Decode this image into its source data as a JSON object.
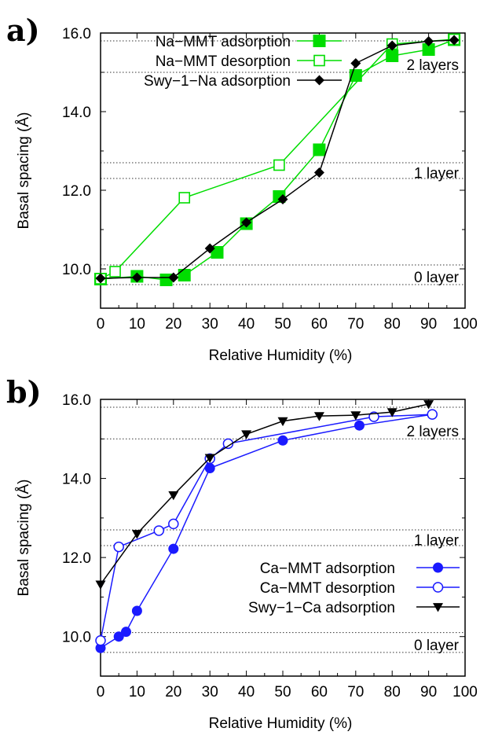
{
  "chart_data": [
    {
      "type": "line",
      "panel_label": "a)",
      "xlabel": "Relative Humidity (%)",
      "ylabel": "Basal spacing (Å)",
      "xlim": [
        0,
        100
      ],
      "ylim": [
        9.0,
        16.0
      ],
      "xticks": [
        "0",
        "10",
        "20",
        "30",
        "40",
        "50",
        "60",
        "70",
        "80",
        "90",
        "100"
      ],
      "yticks": [
        "10.0",
        "12.0",
        "14.0",
        "16.0"
      ],
      "legend_position": "top-left",
      "grid": false,
      "reference_lines": [
        15.8,
        15.0,
        12.7,
        12.3,
        10.1,
        9.6
      ],
      "annotations": [
        {
          "text": "2 layers",
          "y": 15.2
        },
        {
          "text": "1 layer",
          "y": 12.45
        },
        {
          "text": "0 layer",
          "y": 9.8
        }
      ],
      "series": [
        {
          "name": "Na−MMT adsorption",
          "color": "#00dd00",
          "marker": "filled-square",
          "points": [
            [
              0,
              9.74
            ],
            [
              10,
              9.81
            ],
            [
              18,
              9.72
            ],
            [
              23,
              9.84
            ],
            [
              32,
              10.42
            ],
            [
              40,
              11.15
            ],
            [
              49,
              11.84
            ],
            [
              60,
              13.03
            ],
            [
              70,
              14.92
            ],
            [
              80,
              15.42
            ],
            [
              90,
              15.58
            ],
            [
              97,
              15.83
            ]
          ]
        },
        {
          "name": "Na−MMT desorption",
          "color": "#00dd00",
          "marker": "open-square",
          "points": [
            [
              97,
              15.84
            ],
            [
              80,
              15.72
            ],
            [
              49,
              12.64
            ],
            [
              23,
              11.81
            ],
            [
              4,
              9.93
            ],
            [
              0,
              9.75
            ]
          ]
        },
        {
          "name": "Swy−1−Na adsorption",
          "color": "#000000",
          "marker": "filled-diamond",
          "points": [
            [
              0,
              9.76
            ],
            [
              10,
              9.78
            ],
            [
              20,
              9.78
            ],
            [
              30,
              10.52
            ],
            [
              40,
              11.18
            ],
            [
              50,
              11.77
            ],
            [
              60,
              12.45
            ],
            [
              70,
              15.23
            ],
            [
              80,
              15.68
            ],
            [
              90,
              15.79
            ],
            [
              97,
              15.82
            ]
          ]
        }
      ]
    },
    {
      "type": "line",
      "panel_label": "b)",
      "xlabel": "Relative Humidity (%)",
      "ylabel": "Basal spacing (Å)",
      "xlim": [
        0,
        100
      ],
      "ylim": [
        9.0,
        16.0
      ],
      "xticks": [
        "0",
        "10",
        "20",
        "30",
        "40",
        "50",
        "60",
        "70",
        "80",
        "90",
        "100"
      ],
      "yticks": [
        "10.0",
        "12.0",
        "14.0",
        "16.0"
      ],
      "legend_position": "center-right",
      "grid": false,
      "reference_lines": [
        15.8,
        15.0,
        12.7,
        12.3,
        10.1,
        9.6
      ],
      "annotations": [
        {
          "text": "2 layers",
          "y": 15.2
        },
        {
          "text": "1 layer",
          "y": 12.45
        },
        {
          "text": "0 layer",
          "y": 9.8
        }
      ],
      "series": [
        {
          "name": "Ca−MMT adsorption",
          "color": "#1a1aff",
          "marker": "filled-circle",
          "points": [
            [
              0,
              9.71
            ],
            [
              5,
              10.0
            ],
            [
              7,
              10.12
            ],
            [
              10,
              10.65
            ],
            [
              20,
              12.22
            ],
            [
              30,
              14.26
            ],
            [
              50,
              14.96
            ],
            [
              71,
              15.34
            ],
            [
              91,
              15.62
            ]
          ]
        },
        {
          "name": "Ca−MMT desorption",
          "color": "#1a1aff",
          "marker": "open-circle",
          "points": [
            [
              91,
              15.62
            ],
            [
              75,
              15.56
            ],
            [
              35,
              14.88
            ],
            [
              30,
              14.5
            ],
            [
              20,
              12.85
            ],
            [
              16,
              12.68
            ],
            [
              5,
              12.27
            ],
            [
              0,
              9.9
            ]
          ]
        },
        {
          "name": "Swy−1−Ca adsorption",
          "color": "#000000",
          "marker": "filled-triangle-down",
          "points": [
            [
              0,
              11.32
            ],
            [
              10,
              12.6
            ],
            [
              20,
              13.58
            ],
            [
              30,
              14.52
            ],
            [
              40,
              15.12
            ],
            [
              50,
              15.45
            ],
            [
              60,
              15.58
            ],
            [
              70,
              15.6
            ],
            [
              80,
              15.68
            ],
            [
              90,
              15.88
            ]
          ]
        }
      ]
    }
  ]
}
